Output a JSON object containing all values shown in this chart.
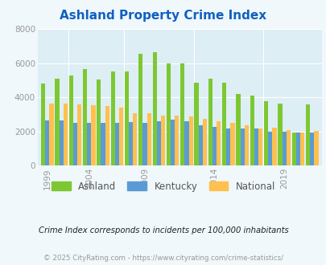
{
  "title": "Ashland Property Crime Index",
  "title_color": "#1060c0",
  "background_color": "#f0f8fb",
  "plot_bg_color": "#ddeef5",
  "years": [
    1999,
    2000,
    2002,
    2004,
    2005,
    2006,
    2008,
    2009,
    2010,
    2011,
    2012,
    2013,
    2014,
    2015,
    2016,
    2017,
    2018,
    2019,
    2020,
    2021
  ],
  "ashland": [
    4820,
    5080,
    5300,
    5650,
    5070,
    5520,
    5500,
    6550,
    6650,
    6000,
    5980,
    4870,
    5080,
    4870,
    4220,
    4100,
    3770,
    3630,
    1950,
    3580
  ],
  "kentucky": [
    2650,
    2650,
    2520,
    2520,
    2500,
    2500,
    2540,
    2530,
    2600,
    2680,
    2580,
    2370,
    2290,
    2180,
    2180,
    2190,
    2010,
    2000,
    1960,
    1960
  ],
  "national": [
    3620,
    3650,
    3590,
    3540,
    3490,
    3380,
    3060,
    3060,
    2950,
    2910,
    2890,
    2740,
    2610,
    2490,
    2360,
    2170,
    2210,
    2100,
    1960,
    2050
  ],
  "ashland_color": "#7dc832",
  "kentucky_color": "#5b9bd5",
  "national_color": "#ffc04d",
  "xtick_years": [
    1999,
    2004,
    2009,
    2014,
    2019
  ],
  "ylim": [
    0,
    8000
  ],
  "yticks": [
    0,
    2000,
    4000,
    6000,
    8000
  ],
  "legend_labels": [
    "Ashland",
    "Kentucky",
    "National"
  ],
  "footnote1": "Crime Index corresponds to incidents per 100,000 inhabitants",
  "footnote2": "© 2025 CityRating.com - https://www.cityrating.com/crime-statistics/",
  "footnote1_color": "#222222",
  "footnote2_color": "#999999"
}
